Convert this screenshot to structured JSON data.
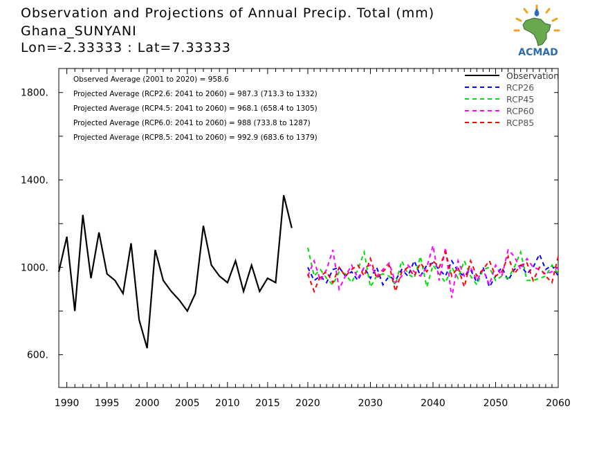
{
  "header": {
    "title": "Observation and Projections of Annual Precip. Total (mm)",
    "location": "Ghana_SUNYANI",
    "coords": "Lon=-2.33333 : Lat=7.33333"
  },
  "logo": {
    "text": "ACMAD",
    "colors": {
      "africa": "#6aa84f",
      "text": "#2b6cb0",
      "sun": "#f0a020"
    }
  },
  "chart_data": {
    "type": "line",
    "title": "Observation and Projections of Annual Precip. Total (mm)",
    "xlabel": "",
    "ylabel": "",
    "xlim": [
      1989,
      2060
    ],
    "ylim": [
      450,
      1910
    ],
    "grid": false,
    "legend_position": "top-right",
    "x_ticks": [
      1990,
      1995,
      2000,
      2005,
      2010,
      2015,
      2020,
      2030,
      2040,
      2050,
      2060
    ],
    "y_ticks": [
      600,
      1000,
      1400,
      1800
    ],
    "y_tick_labels": [
      "600.",
      "1000.",
      "1400.",
      "1800."
    ],
    "annotations": [
      "Observed Average (2001 to 2020) = 958.6",
      "Projected Average (RCP2.6: 2041 to 2060) = 987.3 (713.3 to 1332)",
      "Projected Average (RCP4.5: 2041 to 2060) = 968.1 (658.4 to 1305)",
      "Projected Average (RCP6.0: 2041 to 2060) = 988 (733.8 to 1287)",
      "Projected Average (RCP8.5: 2041 to 2060) = 992.9 (683.6 to 1379)"
    ],
    "series": [
      {
        "name": "Observation",
        "color": "#000000",
        "dashed": false,
        "x": [
          1989,
          1990,
          1991,
          1992,
          1993,
          1994,
          1995,
          1996,
          1997,
          1998,
          1999,
          2000,
          2001,
          2002,
          2003,
          2004,
          2005,
          2006,
          2007,
          2008,
          2009,
          2010,
          2011,
          2012,
          2013,
          2014,
          2015,
          2016,
          2017,
          2018,
          2019,
          2020
        ],
        "y": [
          980,
          1140,
          800,
          1240,
          950,
          1160,
          970,
          940,
          880,
          1110,
          760,
          630,
          1080,
          940,
          890,
          850,
          800,
          880,
          1190,
          1010,
          960,
          930,
          1030,
          890,
          1010,
          890,
          950,
          930,
          1330,
          1180,
          null,
          null
        ]
      },
      {
        "name": "RCP26",
        "color": "#0000ff",
        "dashed": true,
        "x": [
          2020,
          2021,
          2022,
          2023,
          2024,
          2025,
          2026,
          2027,
          2028,
          2029,
          2030,
          2031,
          2032,
          2033,
          2034,
          2035,
          2036,
          2037,
          2038,
          2039,
          2040,
          2041,
          2042,
          2043,
          2044,
          2045,
          2046,
          2047,
          2048,
          2049,
          2050,
          2051,
          2052,
          2053,
          2054,
          2055,
          2056,
          2057,
          2058,
          2059,
          2060
        ],
        "y": [
          1000,
          940,
          960,
          930,
          990,
          1000,
          960,
          980,
          940,
          1000,
          950,
          1000,
          920,
          960,
          940,
          990,
          960,
          1030,
          960,
          1010,
          1020,
          990,
          960,
          1030,
          980,
          960,
          990,
          930,
          1000,
          910,
          960,
          1000,
          940,
          990,
          1010,
          970,
          1000,
          1060,
          990,
          1010,
          960
        ]
      },
      {
        "name": "RCP45",
        "color": "#00dd00",
        "dashed": true,
        "x": [
          2020,
          2021,
          2022,
          2023,
          2024,
          2025,
          2026,
          2027,
          2028,
          2029,
          2030,
          2031,
          2032,
          2033,
          2034,
          2035,
          2036,
          2037,
          2038,
          2039,
          2040,
          2041,
          2042,
          2043,
          2044,
          2045,
          2046,
          2047,
          2048,
          2049,
          2050,
          2051,
          2052,
          2053,
          2054,
          2055,
          2056,
          2057,
          2058,
          2059,
          2060
        ],
        "y": [
          1090,
          960,
          990,
          950,
          920,
          980,
          970,
          930,
          990,
          1070,
          910,
          960,
          970,
          960,
          920,
          1030,
          970,
          950,
          1050,
          910,
          1010,
          970,
          930,
          1000,
          950,
          1030,
          960,
          920,
          990,
          1000,
          940,
          960,
          950,
          1000,
          1070,
          940,
          940,
          950,
          960,
          1010,
          970
        ]
      },
      {
        "name": "RCP60",
        "color": "#ff00ff",
        "dashed": true,
        "x": [
          2020,
          2021,
          2022,
          2023,
          2024,
          2025,
          2026,
          2027,
          2028,
          2029,
          2030,
          2031,
          2032,
          2033,
          2034,
          2035,
          2036,
          2037,
          2038,
          2039,
          2040,
          2041,
          2042,
          2043,
          2044,
          2045,
          2046,
          2047,
          2048,
          2049,
          2050,
          2051,
          2052,
          2053,
          2054,
          2055,
          2056,
          2057,
          2058,
          2059,
          2060
        ],
        "y": [
          960,
          1030,
          940,
          990,
          1080,
          900,
          960,
          1010,
          950,
          1000,
          1010,
          960,
          990,
          1020,
          930,
          960,
          1010,
          980,
          960,
          1000,
          1100,
          940,
          1090,
          860,
          1030,
          960,
          1000,
          940,
          990,
          920,
          1010,
          960,
          1080,
          1050,
          990,
          1040,
          1000,
          990,
          970,
          980,
          1000
        ]
      },
      {
        "name": "RCP85",
        "color": "#ff0000",
        "dashed": true,
        "x": [
          2020,
          2021,
          2022,
          2023,
          2024,
          2025,
          2026,
          2027,
          2028,
          2029,
          2030,
          2031,
          2032,
          2033,
          2034,
          2035,
          2036,
          2037,
          2038,
          2039,
          2040,
          2041,
          2042,
          2043,
          2044,
          2045,
          2046,
          2047,
          2048,
          2049,
          2050,
          2051,
          2052,
          2053,
          2054,
          2055,
          2056,
          2057,
          2058,
          2059,
          2060
        ],
        "y": [
          970,
          890,
          960,
          980,
          930,
          1000,
          960,
          990,
          1010,
          960,
          1040,
          950,
          980,
          1010,
          890,
          980,
          1000,
          960,
          1020,
          980,
          1030,
          1000,
          1070,
          960,
          1000,
          910,
          1030,
          960,
          990,
          1030,
          960,
          980,
          1050,
          970,
          1010,
          1020,
          940,
          1000,
          960,
          930,
          1050
        ]
      }
    ]
  }
}
